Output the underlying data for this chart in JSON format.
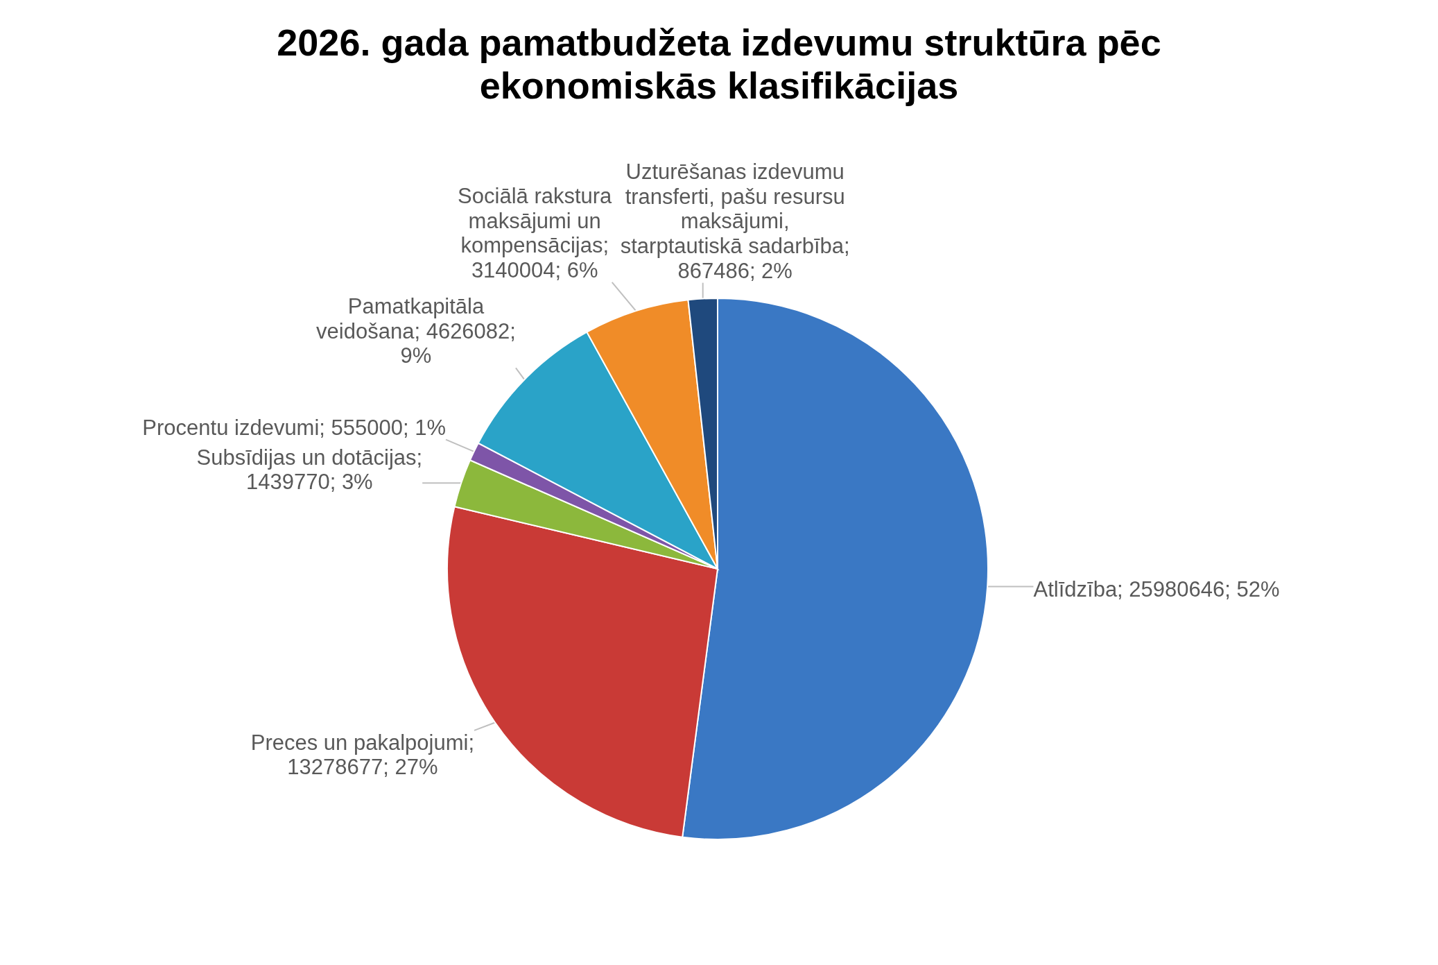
{
  "chart_data": {
    "type": "pie",
    "title": "2026. gada pamatbudžeta izdevumu struktūra pēc ekonomiskās klasifikācijas",
    "categories": [
      "Atlīdzība",
      "Preces un pakalpojumi",
      "Subsīdijas un dotācijas",
      "Procentu izdevumi",
      "Pamatkapitāla veidošana",
      "Sociālā rakstura maksājumi un kompensācijas",
      "Uzturēšanas izdevumu transferti, pašu resursu maksājumi, starptautiskā sadarbība"
    ],
    "values": [
      25980646,
      13278677,
      1439770,
      555000,
      4626082,
      3140004,
      867486
    ],
    "value_labels": [
      "; 25980646; 52%",
      "; 13278677; 27%",
      "; 1439770; 3%",
      "; 555000; 1%",
      "; 4626082; 9%",
      "; 3140004; 6%",
      "; 867486; 2%"
    ],
    "colors": [
      "#3a78c4",
      "#c93a36",
      "#8cb83c",
      "#7e55a8",
      "#2aa3c8",
      "#f08c28",
      "#1f497d"
    ]
  }
}
